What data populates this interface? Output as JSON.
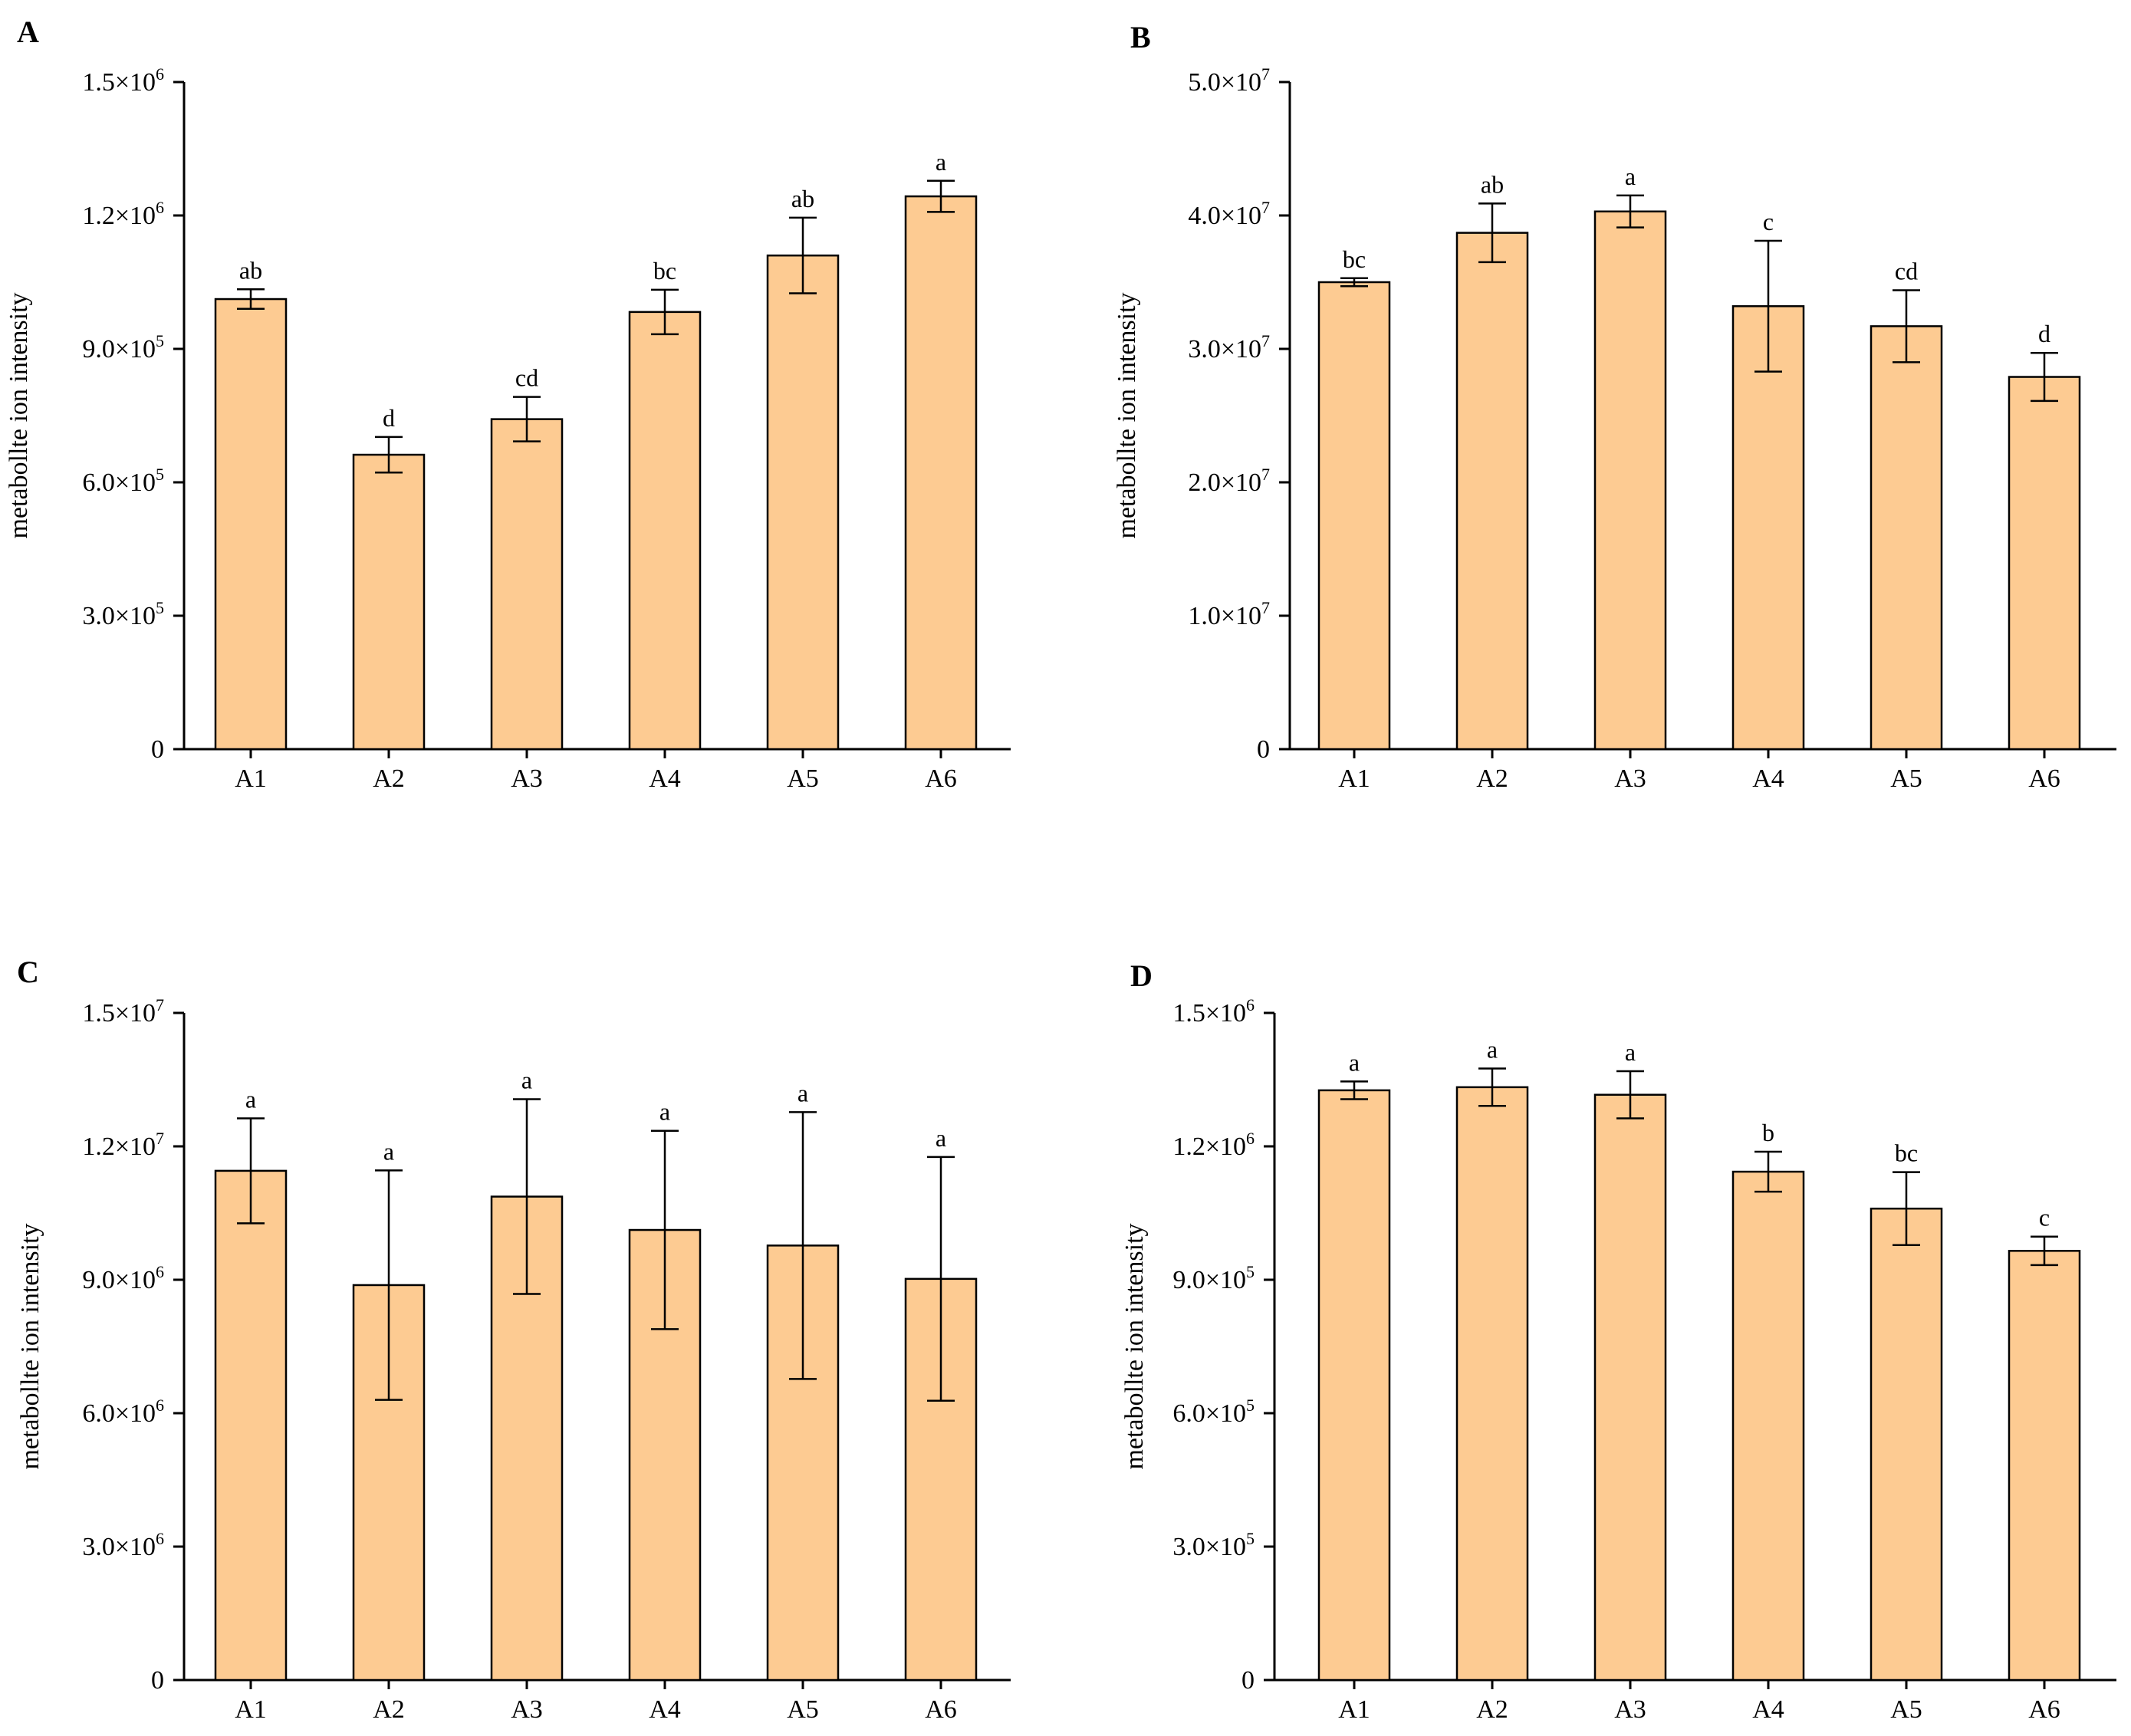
{
  "figure": {
    "bar_fill": "#FDCB92",
    "bar_stroke": "#000000",
    "axis_color": "#000000"
  },
  "chart_data": [
    {
      "panel": "A",
      "type": "bar",
      "ylabel": "metabollte ion intensity",
      "ylim": [
        0,
        1500000
      ],
      "ytick_values": [
        0,
        300000,
        600000,
        900000,
        1200000,
        1500000
      ],
      "ytick_labels": [
        {
          "base": "0",
          "exp": ""
        },
        {
          "base": "3.0×10",
          "exp": "5"
        },
        {
          "base": "6.0×10",
          "exp": "5"
        },
        {
          "base": "9.0×10",
          "exp": "5"
        },
        {
          "base": "1.2×10",
          "exp": "6"
        },
        {
          "base": "1.5×10",
          "exp": "6"
        }
      ],
      "categories": [
        "A1",
        "A2",
        "A3",
        "A4",
        "A5",
        "A6"
      ],
      "values": [
        1012000,
        662000,
        742000,
        983000,
        1110000,
        1243000
      ],
      "errors": [
        22000,
        40000,
        50000,
        50000,
        85000,
        35000
      ],
      "significance": [
        "ab",
        "d",
        "cd",
        "bc",
        "ab",
        "a"
      ]
    },
    {
      "panel": "B",
      "type": "bar",
      "ylabel": "metabollte ion intensity",
      "ylim": [
        0,
        50000000
      ],
      "ytick_values": [
        0,
        10000000,
        20000000,
        30000000,
        40000000,
        50000000
      ],
      "ytick_labels": [
        {
          "base": "0",
          "exp": ""
        },
        {
          "base": "1.0×10",
          "exp": "7"
        },
        {
          "base": "2.0×10",
          "exp": "7"
        },
        {
          "base": "3.0×10",
          "exp": "7"
        },
        {
          "base": "4.0×10",
          "exp": "7"
        },
        {
          "base": "5.0×10",
          "exp": "7"
        }
      ],
      "categories": [
        "A1",
        "A2",
        "A3",
        "A4",
        "A5",
        "A6"
      ],
      "values": [
        35000000,
        38700000,
        40300000,
        33200000,
        31700000,
        27900000
      ],
      "errors": [
        300000,
        2200000,
        1200000,
        4900000,
        2700000,
        1800000
      ],
      "significance": [
        "bc",
        "ab",
        "a",
        "c",
        "cd",
        "d"
      ]
    },
    {
      "panel": "C",
      "type": "bar",
      "ylabel": "metabollte ion intensity",
      "ylim": [
        0,
        15000000
      ],
      "ytick_values": [
        0,
        3000000,
        6000000,
        9000000,
        12000000,
        15000000
      ],
      "ytick_labels": [
        {
          "base": "0",
          "exp": ""
        },
        {
          "base": "3.0×10",
          "exp": "6"
        },
        {
          "base": "6.0×10",
          "exp": "6"
        },
        {
          "base": "9.0×10",
          "exp": "6"
        },
        {
          "base": "1.2×10",
          "exp": "7"
        },
        {
          "base": "1.5×10",
          "exp": "7"
        }
      ],
      "categories": [
        "A1",
        "A2",
        "A3",
        "A4",
        "A5",
        "A6"
      ],
      "values": [
        11450000,
        8880000,
        10870000,
        10120000,
        9770000,
        9020000
      ],
      "errors": [
        1180000,
        2580000,
        2190000,
        2230000,
        3000000,
        2740000
      ],
      "significance": [
        "a",
        "a",
        "a",
        "a",
        "a",
        "a"
      ]
    },
    {
      "panel": "D",
      "type": "bar",
      "ylabel": "metabollte ion intensity",
      "ylim": [
        0,
        1500000
      ],
      "ytick_values": [
        0,
        300000,
        600000,
        900000,
        1200000,
        1500000
      ],
      "ytick_labels": [
        {
          "base": "0",
          "exp": ""
        },
        {
          "base": "3.0×10",
          "exp": "5"
        },
        {
          "base": "6.0×10",
          "exp": "5"
        },
        {
          "base": "9.0×10",
          "exp": "5"
        },
        {
          "base": "1.2×10",
          "exp": "6"
        },
        {
          "base": "1.5×10",
          "exp": "6"
        }
      ],
      "categories": [
        "A1",
        "A2",
        "A3",
        "A4",
        "A5",
        "A6"
      ],
      "values": [
        1326000,
        1333000,
        1316000,
        1143000,
        1060000,
        965000
      ],
      "errors": [
        20000,
        42000,
        53000,
        45000,
        82000,
        32000
      ],
      "significance": [
        "a",
        "a",
        "a",
        "b",
        "bc",
        "c"
      ]
    }
  ]
}
